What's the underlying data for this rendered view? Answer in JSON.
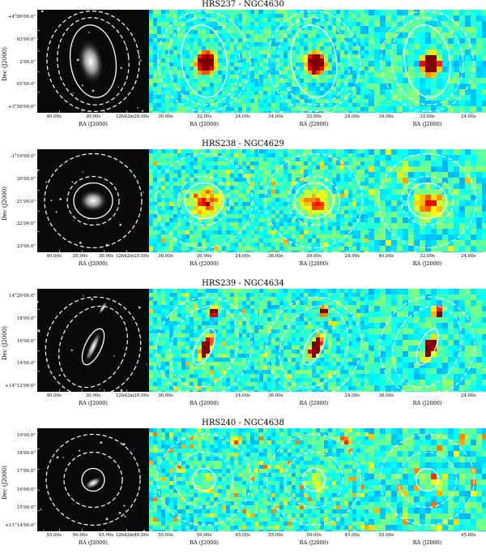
{
  "rows": [
    {
      "title": "HRS237 - NGC4630",
      "ylabel": "Dec (J2000)",
      "yticks": [
        "+4°00'00.0\"",
        "03'00.0\"",
        "2'00.0\"",
        "01'00.0\"",
        "+3°56'00.0\""
      ],
      "xlabels": [
        "RA (J2000)",
        "RA (J2000)",
        "RA (J2000)",
        "RA (J2000)"
      ],
      "xticks": [
        [
          "40.00s",
          "30.00s",
          "12h42m20.00s"
        ],
        [
          "30.00s",
          "32.00s",
          "24.00s"
        ],
        [
          "34.00s",
          "32.00s",
          "24.00s"
        ],
        [
          "34.00s",
          "32.00s",
          "24.00s"
        ]
      ],
      "galaxy": "bright-oval",
      "sources": []
    },
    {
      "title": "HRS238 - NGC4629",
      "ylabel": "Dec (J2000)",
      "yticks": [
        "-1°19'00.0\"",
        "20'00.0\"",
        "21'00.0\"",
        "22'00.0\"",
        "23'00.0\""
      ],
      "xlabels": [
        "RA (J2000)",
        "RA (J2000)",
        "RA (J2000)",
        "RA (J2000)"
      ],
      "xticks": [
        [
          "40.00s",
          "35.00s",
          "30.00s",
          "12h42m25.00s"
        ],
        [
          "36.00s",
          "30.00s",
          "24.00s"
        ],
        [
          "36.00s",
          "30.00s",
          "24.00s"
        ],
        [
          "40.00s",
          "32.00s",
          "24.00s"
        ]
      ],
      "galaxy": "faint-disk",
      "sources": []
    },
    {
      "title": "HRS239 - NGC4634",
      "ylabel": "Dec (J2000)",
      "yticks": [
        "14°20'00.0\"",
        "18'00.0\"",
        "16'00.0\"",
        "14'00.0\"",
        "+14°12'00.0\""
      ],
      "xlabels": [
        "RA (J2000)",
        "RA (J2000)",
        "RA (J2000)",
        "RA (J2000)"
      ],
      "xticks": [
        [
          "40.00s",
          "30.00s",
          "12h42m20.00s"
        ],
        [
          "36.00s",
          "24.00s"
        ],
        [
          "36.00s",
          "24.00s"
        ],
        [
          "36.00s",
          "24.00s"
        ]
      ],
      "galaxy": "edge-on",
      "sources": []
    },
    {
      "title": "HRS240 - NGC4638",
      "ylabel": "Dec (J2000)",
      "yticks": [
        "19'00.0\"",
        "18'00.0\"",
        "17'00.0\"",
        "16'00.0\"",
        "15'00.0\"",
        "+11°14'00.0\""
      ],
      "xlabels": [
        "RA (J2000)",
        "RA (J2000)",
        "RA (J2000)",
        "RA (J2000)"
      ],
      "xticks": [
        [
          "55.00s",
          "50.00s",
          "45.00s",
          "12h42m40.00s"
        ],
        [
          "55.00s",
          "50.00s",
          "45.00s"
        ],
        [
          "55.00s",
          "50.00s",
          "45.00s"
        ],
        [
          "55.00s",
          "45.00s"
        ]
      ],
      "galaxy": "compact",
      "sources": []
    }
  ]
}
